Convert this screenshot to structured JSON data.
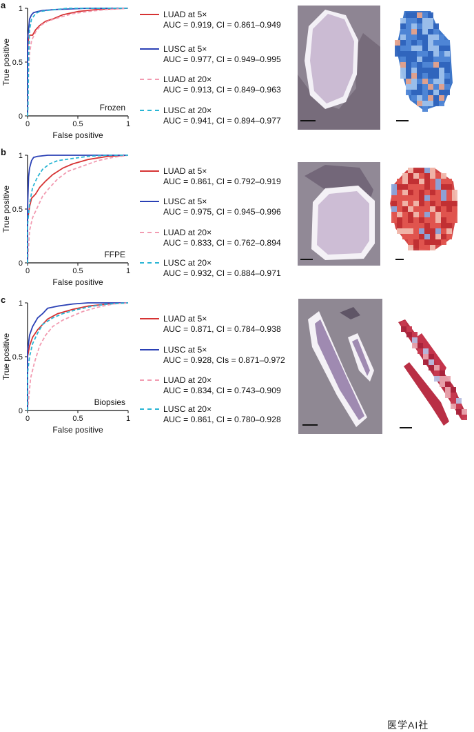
{
  "colors": {
    "luad5": "#d63333",
    "lusc5": "#2a40b5",
    "luad20": "#f29bb1",
    "lusc20": "#29b5d4"
  },
  "series_meta": [
    {
      "key": "luad5",
      "dash": false
    },
    {
      "key": "lusc5",
      "dash": false
    },
    {
      "key": "luad20",
      "dash": true
    },
    {
      "key": "lusc20",
      "dash": true
    }
  ],
  "panels": [
    {
      "letter": "a",
      "annotation": "Frozen",
      "legend": [
        {
          "name": "LUAD at 5×",
          "auc": "AUC = 0.919, CI = 0.861–0.949"
        },
        {
          "name": "LUSC at 5×",
          "auc": "AUC = 0.977, CI = 0.949–0.995"
        },
        {
          "name": "LUAD at 20×",
          "auc": "AUC = 0.913, CI = 0.849–0.963"
        },
        {
          "name": "LUSC at 20×",
          "auc": "AUC = 0.941, CI = 0.894–0.977"
        }
      ],
      "heatmap_tone": "blue"
    },
    {
      "letter": "b",
      "annotation": "FFPE",
      "legend": [
        {
          "name": "LUAD at 5×",
          "auc": "AUC = 0.861, CI = 0.792–0.919"
        },
        {
          "name": "LUSC at 5×",
          "auc": "AUC = 0.975, CI = 0.945–0.996"
        },
        {
          "name": "LUAD at 20×",
          "auc": "AUC = 0.833, CI = 0.762–0.894"
        },
        {
          "name": "LUSC at 20×",
          "auc": "AUC = 0.932, CI = 0.884–0.971"
        }
      ],
      "heatmap_tone": "red"
    },
    {
      "letter": "c",
      "annotation": "Biopsies",
      "legend": [
        {
          "name": "LUAD at 5×",
          "auc": "AUC = 0.871, CI = 0.784–0.938"
        },
        {
          "name": "LUSC at 5×",
          "auc": "AUC = 0.928, CIs = 0.871–0.972"
        },
        {
          "name": "LUAD at 20×",
          "auc": "AUC = 0.834, CI = 0.743–0.909"
        },
        {
          "name": "LUSC at 20×",
          "auc": "AUC = 0.861, CI = 0.780–0.928"
        }
      ],
      "heatmap_tone": "stripes"
    }
  ],
  "watermark": "医学AI社",
  "chart_data": [
    {
      "type": "line",
      "xlabel": "False positive",
      "ylabel": "True positive",
      "xlim": [
        0,
        1
      ],
      "ylim": [
        0,
        1
      ],
      "xticks": [
        "0",
        "0.5",
        "1"
      ],
      "yticks": [
        "0",
        "0.5",
        "1"
      ],
      "series": [
        {
          "name": "LUAD at 5×",
          "x": [
            0,
            0,
            0.01,
            0.02,
            0.05,
            0.08,
            0.12,
            0.18,
            0.25,
            0.35,
            0.5,
            0.7,
            1
          ],
          "y": [
            0,
            0.62,
            0.72,
            0.75,
            0.75,
            0.8,
            0.84,
            0.88,
            0.9,
            0.94,
            0.97,
            0.99,
            1
          ]
        },
        {
          "name": "LUSC at 5×",
          "x": [
            0,
            0,
            0.01,
            0.02,
            0.04,
            0.06,
            0.1,
            0.15,
            0.3,
            0.6,
            1
          ],
          "y": [
            0,
            0.72,
            0.8,
            0.9,
            0.94,
            0.96,
            0.97,
            0.98,
            0.99,
            1,
            1
          ]
        },
        {
          "name": "LUAD at 20×",
          "x": [
            0,
            0.01,
            0.02,
            0.04,
            0.08,
            0.13,
            0.2,
            0.3,
            0.45,
            0.6,
            0.8,
            1
          ],
          "y": [
            0,
            0.4,
            0.58,
            0.7,
            0.78,
            0.84,
            0.88,
            0.91,
            0.95,
            0.97,
            0.99,
            1
          ]
        },
        {
          "name": "LUSC at 20×",
          "x": [
            0,
            0.005,
            0.01,
            0.02,
            0.04,
            0.08,
            0.12,
            0.2,
            0.4,
            1
          ],
          "y": [
            0,
            0.1,
            0.55,
            0.8,
            0.9,
            0.95,
            0.97,
            0.98,
            1,
            1
          ]
        }
      ]
    },
    {
      "type": "line",
      "xlabel": "False positive",
      "ylabel": "True positive",
      "xlim": [
        0,
        1
      ],
      "ylim": [
        0,
        1
      ],
      "xticks": [
        "0",
        "0.5",
        "1"
      ],
      "yticks": [
        "0",
        "0.5",
        "1"
      ],
      "series": [
        {
          "name": "LUAD at 5×",
          "x": [
            0,
            0,
            0.02,
            0.04,
            0.08,
            0.12,
            0.18,
            0.25,
            0.35,
            0.45,
            0.6,
            0.8,
            1
          ],
          "y": [
            0,
            0.4,
            0.52,
            0.6,
            0.64,
            0.7,
            0.76,
            0.82,
            0.88,
            0.92,
            0.96,
            0.99,
            1
          ]
        },
        {
          "name": "LUSC at 5×",
          "x": [
            0,
            0,
            0.01,
            0.02,
            0.04,
            0.06,
            0.1,
            0.2,
            0.5,
            1
          ],
          "y": [
            0,
            0.5,
            0.8,
            0.88,
            0.95,
            0.98,
            0.99,
            1,
            1,
            1
          ]
        },
        {
          "name": "LUAD at 20×",
          "x": [
            0,
            0.02,
            0.05,
            0.1,
            0.15,
            0.22,
            0.3,
            0.4,
            0.55,
            0.7,
            0.85,
            1
          ],
          "y": [
            0,
            0.3,
            0.42,
            0.52,
            0.62,
            0.7,
            0.78,
            0.85,
            0.9,
            0.95,
            0.98,
            1
          ]
        },
        {
          "name": "LUSC at 20×",
          "x": [
            0,
            0,
            0.02,
            0.05,
            0.1,
            0.15,
            0.22,
            0.3,
            0.45,
            0.6,
            0.8,
            1
          ],
          "y": [
            0,
            0.35,
            0.55,
            0.7,
            0.8,
            0.87,
            0.92,
            0.95,
            0.97,
            0.99,
            1,
            1
          ]
        }
      ]
    },
    {
      "type": "line",
      "xlabel": "False positive",
      "ylabel": "True positive",
      "xlim": [
        0,
        1
      ],
      "ylim": [
        0,
        1
      ],
      "xticks": [
        "0",
        "0.5",
        "1"
      ],
      "yticks": [
        "0",
        "0.5",
        "1"
      ],
      "series": [
        {
          "name": "LUAD at 5×",
          "x": [
            0,
            0,
            0.02,
            0.05,
            0.1,
            0.15,
            0.2,
            0.3,
            0.45,
            0.6,
            0.8,
            1
          ],
          "y": [
            0,
            0.5,
            0.6,
            0.68,
            0.75,
            0.8,
            0.85,
            0.9,
            0.94,
            0.97,
            0.99,
            1
          ]
        },
        {
          "name": "LUSC at 5×",
          "x": [
            0,
            0,
            0.02,
            0.05,
            0.1,
            0.15,
            0.2,
            0.3,
            0.45,
            0.6,
            1
          ],
          "y": [
            0,
            0.55,
            0.7,
            0.78,
            0.86,
            0.9,
            0.95,
            0.97,
            0.99,
            1,
            1
          ]
        },
        {
          "name": "LUAD at 20×",
          "x": [
            0,
            0.03,
            0.07,
            0.12,
            0.18,
            0.25,
            0.35,
            0.45,
            0.55,
            0.7,
            0.85,
            1
          ],
          "y": [
            0,
            0.3,
            0.45,
            0.6,
            0.7,
            0.78,
            0.84,
            0.88,
            0.92,
            0.96,
            0.99,
            1
          ]
        },
        {
          "name": "LUSC at 20×",
          "x": [
            0,
            0,
            0.02,
            0.05,
            0.1,
            0.15,
            0.25,
            0.35,
            0.5,
            0.65,
            0.8,
            1
          ],
          "y": [
            0,
            0.35,
            0.5,
            0.62,
            0.72,
            0.8,
            0.86,
            0.9,
            0.94,
            0.97,
            0.99,
            1
          ]
        }
      ]
    }
  ]
}
